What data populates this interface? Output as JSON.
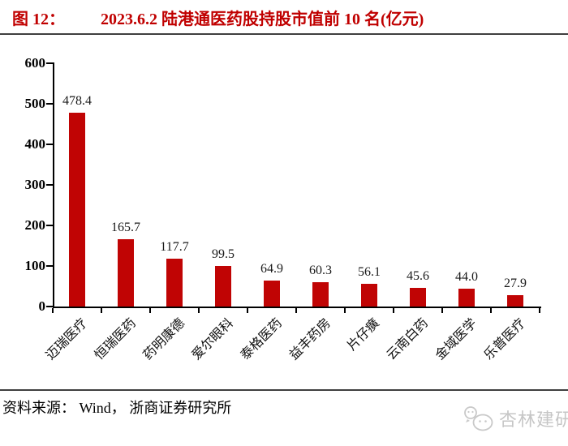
{
  "header": {
    "label": "图 12：",
    "title": "2023.6.2 陆港通医药股持股市值前 10 名(亿元)"
  },
  "chart_data": {
    "type": "bar",
    "title": "2023.6.2 陆港通医药股持股市值前 10 名(亿元)",
    "categories": [
      "迈瑞医疗",
      "恒瑞医药",
      "药明康德",
      "爱尔眼科",
      "泰格医药",
      "益丰药房",
      "片仔癀",
      "云南白药",
      "金域医学",
      "乐普医疗"
    ],
    "values": [
      478.4,
      165.7,
      117.7,
      99.5,
      64.9,
      60.3,
      56.1,
      45.6,
      44.0,
      27.9
    ],
    "value_labels": [
      "478.4",
      "165.7",
      "117.7",
      "99.5",
      "64.9",
      "60.3",
      "56.1",
      "45.6",
      "44.0",
      "27.9"
    ],
    "xlabel": "",
    "ylabel": "",
    "ylim": [
      0,
      600
    ],
    "ytick_step": 100,
    "grid": false,
    "legend": null,
    "bar_color": "#c00404"
  },
  "source": {
    "text": "资料来源： Wind， 浙商证券研究所"
  },
  "watermark": {
    "icon": "wechat-chat-bubbles-icon",
    "text": "杏林建研"
  },
  "colors": {
    "title_red": "#c00000",
    "bar_red": "#c00404",
    "rule_gray": "#3f3f3f",
    "watermark_gray": "#c6c6c6"
  }
}
